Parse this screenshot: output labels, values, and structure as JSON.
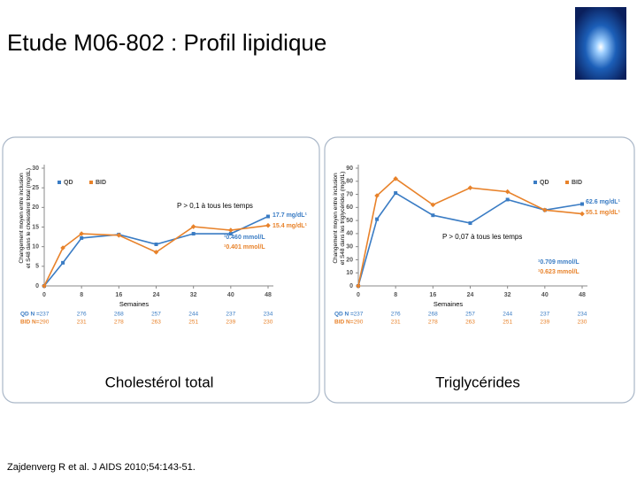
{
  "slide_title": "Etude M06-802 : Profil lipidique",
  "citation": "Zajdenverg R et al. J AIDS 2010;54:143-51.",
  "chart_data": [
    {
      "type": "line",
      "caption": "Cholestérol total",
      "ylabel": [
        "Changement moyen entre inclusion",
        "et S48 dans le cholestérol total (mg/dL)"
      ],
      "xlabel": "Semaines",
      "x": [
        0,
        4,
        8,
        16,
        24,
        32,
        40,
        48
      ],
      "xlim": [
        0,
        48
      ],
      "xticks": [
        0,
        8,
        16,
        24,
        32,
        40,
        48
      ],
      "ylim": [
        0,
        30
      ],
      "yticks": [
        0,
        5,
        10,
        15,
        20,
        25,
        30
      ],
      "legend": "top-left",
      "series": [
        {
          "name": "QD",
          "color": "#3a7cc4",
          "values": [
            0,
            5.9,
            12.2,
            13.1,
            10.6,
            13.3,
            13.3,
            17.7
          ]
        },
        {
          "name": "BID",
          "color": "#e8822a",
          "values": [
            0,
            9.7,
            13.3,
            12.9,
            8.6,
            15.1,
            14.2,
            15.4
          ]
        }
      ],
      "annotations": [
        "P > 0,1 à tous les temps",
        "17.7 mg/dL¹",
        "15.4 mg/dL¹",
        "¹0.460 mmol/L",
        "¹0.401 mmol/L"
      ],
      "n_table": {
        "labels": [
          "QD N =",
          "BID N="
        ],
        "rows": [
          [
            "237",
            "276",
            "268",
            "257",
            "244",
            "237",
            "234"
          ],
          [
            "290",
            "231",
            "278",
            "263",
            "251",
            "239",
            "230"
          ]
        ]
      }
    },
    {
      "type": "line",
      "caption": "Triglycérides",
      "ylabel": [
        "Changement moyen entre inclusion",
        "et S48 dans les triglycérides (mg/dL)"
      ],
      "xlabel": "Semaines",
      "x": [
        0,
        4,
        8,
        16,
        24,
        32,
        40,
        48
      ],
      "xlim": [
        0,
        48
      ],
      "xticks": [
        0,
        8,
        16,
        24,
        32,
        40,
        48
      ],
      "ylim": [
        0,
        90
      ],
      "yticks": [
        0,
        10,
        20,
        30,
        40,
        50,
        60,
        70,
        80,
        90
      ],
      "legend": "top-right",
      "series": [
        {
          "name": "QD",
          "color": "#3a7cc4",
          "values": [
            0,
            51,
            71,
            54,
            48,
            66,
            58,
            62.6
          ]
        },
        {
          "name": "BID",
          "color": "#e8822a",
          "values": [
            0,
            69,
            82,
            62,
            75,
            72,
            58,
            55.1
          ]
        }
      ],
      "annotations": [
        "P > 0,07 à tous les temps",
        "62.6 mg/dL¹",
        "55.1 mg/dL¹",
        "¹0.709 mmol/L",
        "¹0.623 mmol/L"
      ],
      "n_table": {
        "labels": [
          "QD N =",
          "BID N="
        ],
        "rows": [
          [
            "237",
            "276",
            "268",
            "257",
            "244",
            "237",
            "234"
          ],
          [
            "290",
            "231",
            "278",
            "263",
            "251",
            "239",
            "230"
          ]
        ]
      }
    }
  ]
}
